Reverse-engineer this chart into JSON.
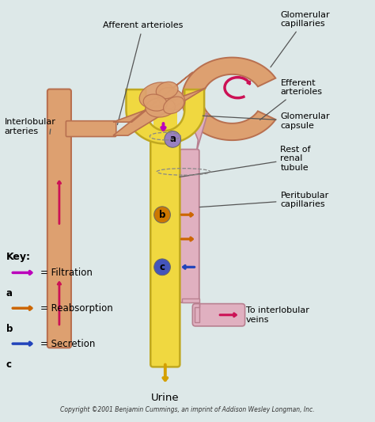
{
  "bg_color": "#dde8e8",
  "copyright": "Copyright ©2001 Benjamin Cummings, an imprint of Addison Wesley Longman, Inc.",
  "labels": {
    "afferent": "Afferent arterioles",
    "glom_cap": "Glomerular\ncapillaries",
    "efferent": "Efferent\narterioles",
    "glom_cap2": "Glomerular\ncapsule",
    "rest_tubule": "Rest of\nrenal\ntubule",
    "peritubular": "Peritubular\ncapillaries",
    "interlobular": "Interlobular\narteries",
    "to_veins": "To interlobular\nveins",
    "urine": "Urine"
  },
  "key": {
    "title": "Key:",
    "filtration": "= Filtration",
    "reabsorption": "= Reabsorption",
    "secretion": "= Secretion",
    "a_label": "a",
    "b_label": "b",
    "c_label": "c"
  },
  "colors": {
    "artery_fill": "#DDA070",
    "artery_stroke": "#B87050",
    "tubule_fill": "#F0D840",
    "tubule_stroke": "#C0A820",
    "glom_fill": "#DDA070",
    "glom_stroke": "#B87050",
    "vein_fill": "#E0B0C0",
    "vein_stroke": "#B88090",
    "filtration_arrow": "#BB00BB",
    "reabsorption_arrow": "#CC6600",
    "secretion_arrow": "#2244BB",
    "label_a_fill": "#9980C0",
    "label_b_fill": "#CC7700",
    "label_c_fill": "#4455BB",
    "pink_arrow": "#CC1155"
  }
}
